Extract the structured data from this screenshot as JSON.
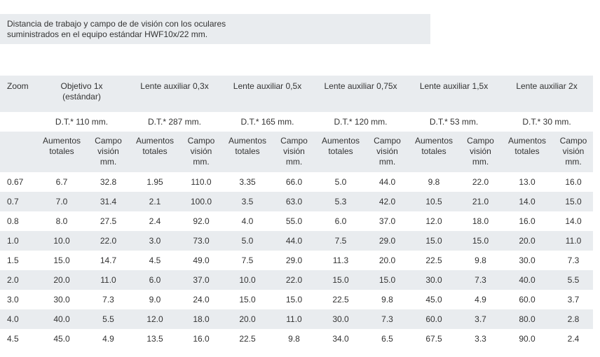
{
  "note": {
    "line1": "Distancia de trabajo y campo de de visión con los oculares",
    "line2": "suministrados en el equipo estándar HWF10x/22 mm."
  },
  "table": {
    "zoom_header": "Zoom",
    "lenses": [
      {
        "line1": "Objetivo 1x",
        "line2": "(estándar)",
        "dt": "D.T.* 110 mm."
      },
      {
        "line1": "Lente auxiliar 0,3x",
        "line2": "",
        "dt": "D.T.* 287 mm."
      },
      {
        "line1": "Lente auxiliar 0,5x",
        "line2": "",
        "dt": "D.T.* 165 mm."
      },
      {
        "line1": "Lente auxiliar 0,75x",
        "line2": "",
        "dt": "D.T.* 120 mm."
      },
      {
        "line1": "Lente auxiliar 1,5x",
        "line2": "",
        "dt": "D.T.* 53 mm."
      },
      {
        "line1": "Lente auxiliar 2x",
        "line2": "",
        "dt": "D.T.* 30 mm."
      }
    ],
    "sub_a": {
      "line1": "Aumentos",
      "line2": "totales"
    },
    "sub_b": {
      "line1": "Campo",
      "line2": "visión",
      "line3": "mm."
    },
    "rows": [
      {
        "zoom": "0.67",
        "values": [
          "6.7",
          "32.8",
          "1.95",
          "110.0",
          "3.35",
          "66.0",
          "5.0",
          "44.0",
          "9.8",
          "22.0",
          "13.0",
          "16.0"
        ]
      },
      {
        "zoom": "0.7",
        "values": [
          "7.0",
          "31.4",
          "2.1",
          "100.0",
          "3.5",
          "63.0",
          "5.3",
          "42.0",
          "10.5",
          "21.0",
          "14.0",
          "15.0"
        ]
      },
      {
        "zoom": "0.8",
        "values": [
          "8.0",
          "27.5",
          "2.4",
          "92.0",
          "4.0",
          "55.0",
          "6.0",
          "37.0",
          "12.0",
          "18.0",
          "16.0",
          "14.0"
        ]
      },
      {
        "zoom": "1.0",
        "values": [
          "10.0",
          "22.0",
          "3.0",
          "73.0",
          "5.0",
          "44.0",
          "7.5",
          "29.0",
          "15.0",
          "15.0",
          "20.0",
          "11.0"
        ]
      },
      {
        "zoom": "1.5",
        "values": [
          "15.0",
          "14.7",
          "4.5",
          "49.0",
          "7.5",
          "29.0",
          "11.3",
          "20.0",
          "22.5",
          "9.8",
          "30.0",
          "7.3"
        ]
      },
      {
        "zoom": "2.0",
        "values": [
          "20.0",
          "11.0",
          "6.0",
          "37.0",
          "10.0",
          "22.0",
          "15.0",
          "15.0",
          "30.0",
          "7.3",
          "40.0",
          "5.5"
        ]
      },
      {
        "zoom": "3.0",
        "values": [
          "30.0",
          "7.3",
          "9.0",
          "24.0",
          "15.0",
          "15.0",
          "22.5",
          "9.8",
          "45.0",
          "4.9",
          "60.0",
          "3.7"
        ]
      },
      {
        "zoom": "4.0",
        "values": [
          "40.0",
          "5.5",
          "12.0",
          "18.0",
          "20.0",
          "11.0",
          "30.0",
          "7.3",
          "60.0",
          "3.7",
          "80.0",
          "2.8"
        ]
      },
      {
        "zoom": "4.5",
        "values": [
          "45.0",
          "4.9",
          "13.5",
          "16.0",
          "22.5",
          "9.8",
          "34.0",
          "6.5",
          "67.5",
          "3.3",
          "90.0",
          "2.4"
        ]
      }
    ]
  }
}
